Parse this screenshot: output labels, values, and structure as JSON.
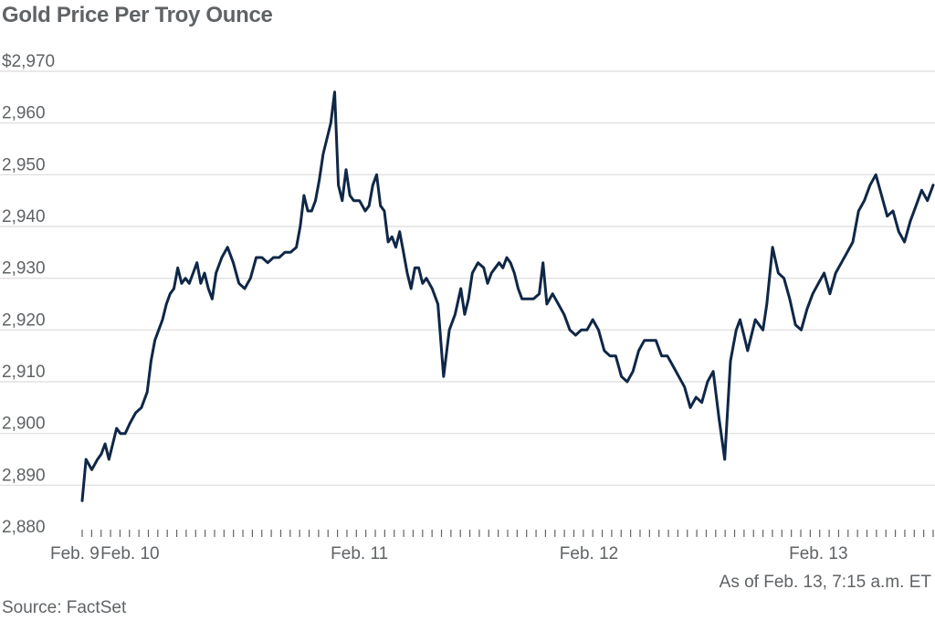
{
  "title": "Gold Price Per Troy Ounce",
  "footnote": "As of Feb. 13, 7:15 a.m. ET",
  "source": "Source: FactSet",
  "colors": {
    "line": "#0f2747",
    "grid": "#dcdcdc",
    "text": "#5f6366"
  },
  "chart_data": {
    "type": "line",
    "title": "Gold Price Per Troy Ounce",
    "ylim": [
      2880,
      2970
    ],
    "y_ticks": [
      2880,
      2890,
      2900,
      2910,
      2920,
      2930,
      2940,
      2950,
      2960,
      2970
    ],
    "y_tick_labels": [
      "2,880",
      "2,890",
      "2,900",
      "2,910",
      "2,920",
      "2,930",
      "2,940",
      "2,950",
      "2,960",
      "$2,970"
    ],
    "x_ticks": [
      {
        "label": "Feb. 9",
        "t": 0
      },
      {
        "label": "Feb. 10",
        "t": 5
      },
      {
        "label": "Feb. 11",
        "t": 29
      },
      {
        "label": "Feb. 12",
        "t": 53
      },
      {
        "label": "Feb. 13",
        "t": 77
      }
    ],
    "x_range": [
      0,
      87
    ],
    "grid": true,
    "series": [
      {
        "values": [
          [
            0,
            2887
          ],
          [
            0.4,
            2895
          ],
          [
            1,
            2893
          ],
          [
            1.6,
            2895
          ],
          [
            2,
            2896
          ],
          [
            2.4,
            2898
          ],
          [
            2.8,
            2895
          ],
          [
            3.2,
            2898
          ],
          [
            3.6,
            2901
          ],
          [
            4,
            2900
          ],
          [
            4.5,
            2900
          ],
          [
            5,
            2902
          ],
          [
            5.6,
            2904
          ],
          [
            6.2,
            2905
          ],
          [
            6.8,
            2908
          ],
          [
            7.2,
            2914
          ],
          [
            7.6,
            2918
          ],
          [
            8,
            2920
          ],
          [
            8.4,
            2922
          ],
          [
            8.8,
            2925
          ],
          [
            9.2,
            2927
          ],
          [
            9.6,
            2928
          ],
          [
            10,
            2932
          ],
          [
            10.4,
            2929
          ],
          [
            10.8,
            2930
          ],
          [
            11.2,
            2929
          ],
          [
            11.6,
            2931
          ],
          [
            12,
            2933
          ],
          [
            12.4,
            2929
          ],
          [
            12.8,
            2931
          ],
          [
            13.2,
            2928
          ],
          [
            13.6,
            2926
          ],
          [
            14,
            2931
          ],
          [
            14.6,
            2934
          ],
          [
            15.2,
            2936
          ],
          [
            15.8,
            2933
          ],
          [
            16.4,
            2929
          ],
          [
            17,
            2928
          ],
          [
            17.6,
            2930
          ],
          [
            18.2,
            2934
          ],
          [
            18.8,
            2934
          ],
          [
            19.4,
            2933
          ],
          [
            20,
            2934
          ],
          [
            20.6,
            2934
          ],
          [
            21.2,
            2935
          ],
          [
            21.8,
            2935
          ],
          [
            22.4,
            2936
          ],
          [
            22.8,
            2940
          ],
          [
            23.2,
            2946
          ],
          [
            23.6,
            2943
          ],
          [
            24,
            2943
          ],
          [
            24.4,
            2945
          ],
          [
            24.8,
            2949
          ],
          [
            25.2,
            2954
          ],
          [
            25.6,
            2957
          ],
          [
            26,
            2960
          ],
          [
            26.4,
            2966
          ],
          [
            26.8,
            2948
          ],
          [
            27.2,
            2945
          ],
          [
            27.6,
            2951
          ],
          [
            28,
            2946
          ],
          [
            28.4,
            2945
          ],
          [
            29,
            2945
          ],
          [
            29.6,
            2943
          ],
          [
            30,
            2944
          ],
          [
            30.4,
            2948
          ],
          [
            30.8,
            2950
          ],
          [
            31.2,
            2944
          ],
          [
            31.6,
            2943
          ],
          [
            32,
            2937
          ],
          [
            32.4,
            2938
          ],
          [
            32.8,
            2936
          ],
          [
            33.2,
            2939
          ],
          [
            33.6,
            2935
          ],
          [
            34,
            2931
          ],
          [
            34.4,
            2928
          ],
          [
            34.8,
            2932
          ],
          [
            35.2,
            2932
          ],
          [
            35.6,
            2929
          ],
          [
            36,
            2930
          ],
          [
            36.6,
            2928
          ],
          [
            37.2,
            2925
          ],
          [
            37.8,
            2911
          ],
          [
            38.4,
            2920
          ],
          [
            39,
            2923
          ],
          [
            39.6,
            2928
          ],
          [
            40,
            2923
          ],
          [
            40.4,
            2926
          ],
          [
            40.8,
            2931
          ],
          [
            41.4,
            2933
          ],
          [
            42,
            2932
          ],
          [
            42.4,
            2929
          ],
          [
            42.8,
            2931
          ],
          [
            43.2,
            2932
          ],
          [
            43.6,
            2933
          ],
          [
            44,
            2932
          ],
          [
            44.4,
            2934
          ],
          [
            44.8,
            2933
          ],
          [
            45.2,
            2931
          ],
          [
            45.6,
            2928
          ],
          [
            46,
            2926
          ],
          [
            46.6,
            2926
          ],
          [
            47.2,
            2926
          ],
          [
            47.8,
            2927
          ],
          [
            48.2,
            2933
          ],
          [
            48.6,
            2925
          ],
          [
            49.2,
            2927
          ],
          [
            49.8,
            2925
          ],
          [
            50.4,
            2923
          ],
          [
            51,
            2920
          ],
          [
            51.6,
            2919
          ],
          [
            52.2,
            2920
          ],
          [
            52.8,
            2920
          ],
          [
            53.4,
            2922
          ],
          [
            54,
            2920
          ],
          [
            54.6,
            2916
          ],
          [
            55.2,
            2915
          ],
          [
            55.8,
            2915
          ],
          [
            56.4,
            2911
          ],
          [
            57,
            2910
          ],
          [
            57.6,
            2912
          ],
          [
            58.2,
            2916
          ],
          [
            58.8,
            2918
          ],
          [
            59.4,
            2918
          ],
          [
            60,
            2918
          ],
          [
            60.6,
            2915
          ],
          [
            61.2,
            2915
          ],
          [
            61.8,
            2913
          ],
          [
            62.4,
            2911
          ],
          [
            63,
            2909
          ],
          [
            63.6,
            2905
          ],
          [
            64.2,
            2907
          ],
          [
            64.8,
            2906
          ],
          [
            65.4,
            2910
          ],
          [
            66,
            2912
          ],
          [
            66.6,
            2903
          ],
          [
            67.2,
            2895
          ],
          [
            67.8,
            2914
          ],
          [
            68.4,
            2920
          ],
          [
            68.8,
            2922
          ],
          [
            69.2,
            2919
          ],
          [
            69.6,
            2916
          ],
          [
            70,
            2919
          ],
          [
            70.4,
            2922
          ],
          [
            70.8,
            2921
          ],
          [
            71.2,
            2920
          ],
          [
            71.6,
            2925
          ],
          [
            72.2,
            2936
          ],
          [
            72.8,
            2931
          ],
          [
            73.4,
            2930
          ],
          [
            74,
            2926
          ],
          [
            74.6,
            2921
          ],
          [
            75.2,
            2920
          ],
          [
            75.8,
            2924
          ],
          [
            76.4,
            2927
          ],
          [
            77,
            2929
          ],
          [
            77.6,
            2931
          ],
          [
            78.2,
            2927
          ],
          [
            78.8,
            2931
          ],
          [
            79.4,
            2933
          ],
          [
            80,
            2935
          ],
          [
            80.6,
            2937
          ],
          [
            81.2,
            2943
          ],
          [
            81.8,
            2945
          ],
          [
            82.4,
            2948
          ],
          [
            83,
            2950
          ],
          [
            83.6,
            2946
          ],
          [
            84.2,
            2942
          ],
          [
            84.8,
            2943
          ],
          [
            85.4,
            2939
          ],
          [
            86,
            2937
          ],
          [
            86.6,
            2941
          ],
          [
            87.2,
            2944
          ],
          [
            87.8,
            2947
          ],
          [
            88.4,
            2945
          ],
          [
            89,
            2948
          ]
        ]
      }
    ]
  }
}
